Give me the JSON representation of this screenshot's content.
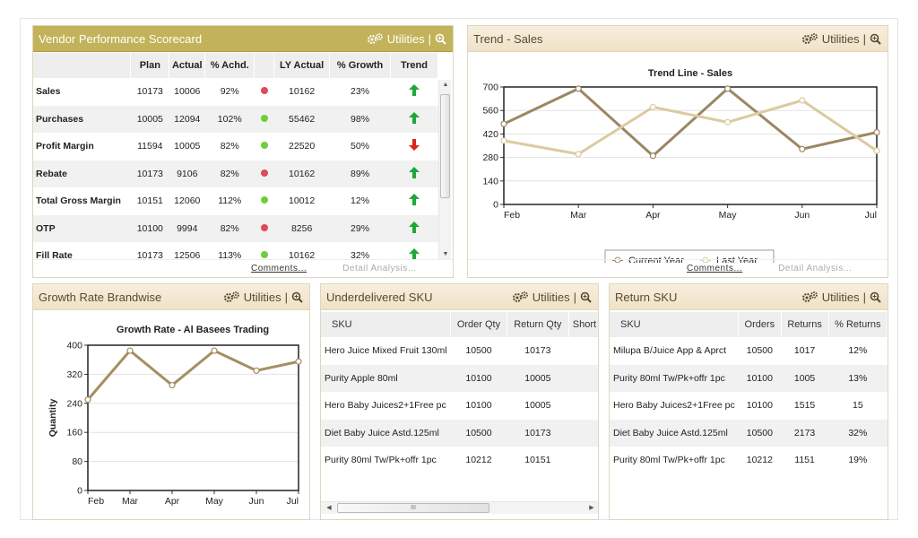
{
  "scorecard": {
    "title": "Vendor Performance Scorecard",
    "utilities_label": "Utilities",
    "columns": [
      "",
      "Plan",
      "Actual",
      "% Achd.",
      "",
      "LY Actual",
      "% Growth",
      "Trend"
    ],
    "rows": [
      {
        "label": "Sales",
        "plan": "10173",
        "actual": "10006",
        "achd": "92%",
        "status": "red",
        "ly": "10162",
        "growth": "23%",
        "trend": "up"
      },
      {
        "label": "Purchases",
        "plan": "10005",
        "actual": "12094",
        "achd": "102%",
        "status": "green",
        "ly": "55462",
        "growth": "98%",
        "trend": "up"
      },
      {
        "label": "Profit Margin",
        "plan": "11594",
        "actual": "10005",
        "achd": "82%",
        "status": "green",
        "ly": "22520",
        "growth": "50%",
        "trend": "down"
      },
      {
        "label": "Rebate",
        "plan": "10173",
        "actual": "9106",
        "achd": "82%",
        "status": "red",
        "ly": "10162",
        "growth": "89%",
        "trend": "up"
      },
      {
        "label": "Total Gross Margin",
        "plan": "10151",
        "actual": "12060",
        "achd": "112%",
        "status": "green",
        "ly": "10012",
        "growth": "12%",
        "trend": "up"
      },
      {
        "label": "OTP",
        "plan": "10100",
        "actual": "9994",
        "achd": "82%",
        "status": "red",
        "ly": "8256",
        "growth": "29%",
        "trend": "up"
      },
      {
        "label": "Fill Rate",
        "plan": "10173",
        "actual": "12506",
        "achd": "113%",
        "status": "green",
        "ly": "10162",
        "growth": "32%",
        "trend": "up"
      }
    ],
    "comments_label": "Comments...",
    "detail_label": "Detail Analysis..."
  },
  "trend": {
    "title": "Trend - Sales",
    "utilities_label": "Utilities",
    "comments_label": "Comments...",
    "detail_label": "Detail Analysis..."
  },
  "growth": {
    "title": "Growth Rate Brandwise",
    "utilities_label": "Utilities"
  },
  "underdelivered": {
    "title": "Underdelivered SKU",
    "utilities_label": "Utilities",
    "columns": [
      "SKU",
      "Order Qty",
      "Return Qty",
      "Short"
    ],
    "rows": [
      [
        "Hero Juice Mixed Fruit 130ml",
        "10500",
        "10173",
        ""
      ],
      [
        "Purity Apple 80ml",
        "10100",
        "10005",
        ""
      ],
      [
        "Hero Baby Juices2+1Free pc",
        "10100",
        "10005",
        ""
      ],
      [
        "Diet Baby Juice Astd.125ml",
        "10500",
        "10173",
        "("
      ],
      [
        "Purity 80ml Tw/Pk+offr 1pc",
        "10212",
        "10151",
        ""
      ]
    ],
    "scroll_grip": "III"
  },
  "returns": {
    "title": "Return SKU",
    "utilities_label": "Utilities",
    "columns": [
      "SKU",
      "Orders",
      "Returns",
      "% Returns"
    ],
    "rows": [
      [
        "Milupa B/Juice App & Aprct",
        "10500",
        "1017",
        "12%"
      ],
      [
        "Purity 80ml Tw/Pk+offr 1pc",
        "10100",
        "1005",
        "13%"
      ],
      [
        "Hero Baby Juices2+1Free pc",
        "10100",
        "1515",
        "15"
      ],
      [
        "Diet Baby Juice Astd.125ml",
        "10500",
        "2173",
        "32%"
      ],
      [
        "Purity 80ml Tw/Pk+offr 1pc",
        "10212",
        "1151",
        "19%"
      ]
    ]
  },
  "chart_data": [
    {
      "type": "line",
      "title": "Trend Line - Sales",
      "x": [
        "Feb",
        "Mar",
        "Apr",
        "May",
        "Jun",
        "Jul"
      ],
      "ylim": [
        0,
        700
      ],
      "yticks": [
        0,
        140,
        280,
        420,
        560,
        700
      ],
      "grid": true,
      "legend": "bottom",
      "series": [
        {
          "name": "Current Year",
          "color": "#9b8762",
          "values": [
            480,
            690,
            290,
            690,
            330,
            430
          ]
        },
        {
          "name": "Last Year",
          "color": "#dccaa0",
          "values": [
            380,
            300,
            580,
            490,
            620,
            320
          ]
        }
      ]
    },
    {
      "type": "line",
      "title": "Growth Rate - Al Basees Trading",
      "ylabel": "Quantity",
      "x": [
        "Feb",
        "Mar",
        "Apr",
        "May",
        "Jun",
        "Jul"
      ],
      "ylim": [
        0,
        400
      ],
      "yticks": [
        0,
        80,
        160,
        240,
        320,
        400
      ],
      "grid": true,
      "series": [
        {
          "color": "#a58e62",
          "values": [
            250,
            385,
            290,
            385,
            330,
            355
          ]
        }
      ]
    }
  ]
}
